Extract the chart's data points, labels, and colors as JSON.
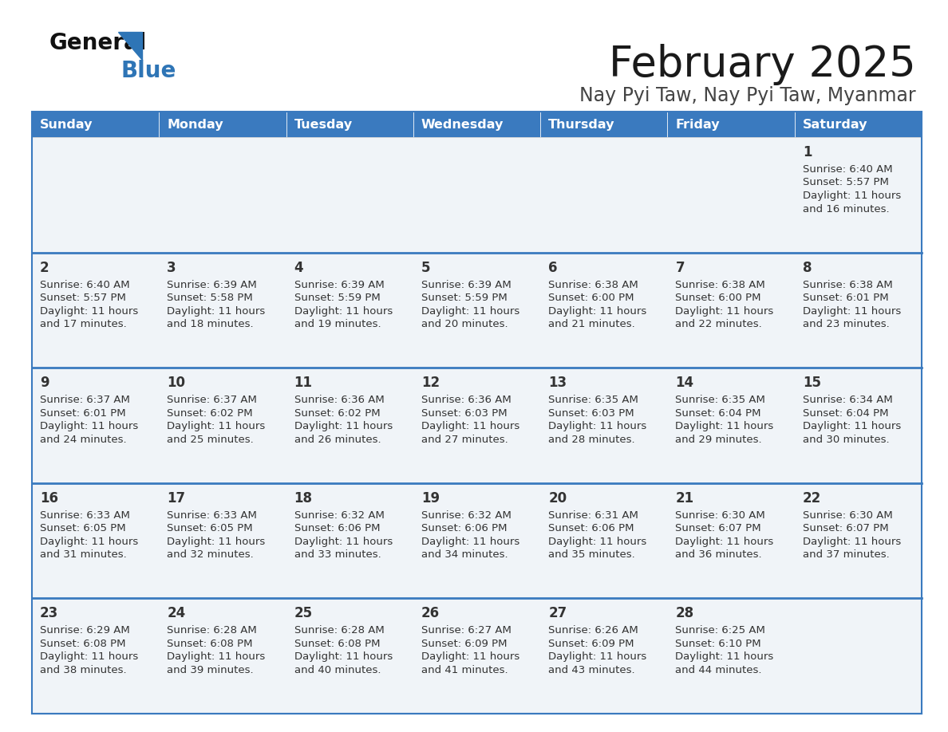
{
  "title": "February 2025",
  "subtitle": "Nay Pyi Taw, Nay Pyi Taw, Myanmar",
  "header_color": "#3a7abf",
  "header_text_color": "#ffffff",
  "days_of_week": [
    "Sunday",
    "Monday",
    "Tuesday",
    "Wednesday",
    "Thursday",
    "Friday",
    "Saturday"
  ],
  "background_color": "#ffffff",
  "cell_bg": "#f0f4f8",
  "row_line_color": "#3a7abf",
  "text_color": "#333333",
  "day_num_color": "#333333",
  "calendar_data": [
    [
      null,
      null,
      null,
      null,
      null,
      null,
      {
        "day": 1,
        "sunrise": "6:40 AM",
        "sunset": "5:57 PM",
        "daylight_l1": "Daylight: 11 hours",
        "daylight_l2": "and 16 minutes."
      }
    ],
    [
      {
        "day": 2,
        "sunrise": "6:40 AM",
        "sunset": "5:57 PM",
        "daylight_l1": "Daylight: 11 hours",
        "daylight_l2": "and 17 minutes."
      },
      {
        "day": 3,
        "sunrise": "6:39 AM",
        "sunset": "5:58 PM",
        "daylight_l1": "Daylight: 11 hours",
        "daylight_l2": "and 18 minutes."
      },
      {
        "day": 4,
        "sunrise": "6:39 AM",
        "sunset": "5:59 PM",
        "daylight_l1": "Daylight: 11 hours",
        "daylight_l2": "and 19 minutes."
      },
      {
        "day": 5,
        "sunrise": "6:39 AM",
        "sunset": "5:59 PM",
        "daylight_l1": "Daylight: 11 hours",
        "daylight_l2": "and 20 minutes."
      },
      {
        "day": 6,
        "sunrise": "6:38 AM",
        "sunset": "6:00 PM",
        "daylight_l1": "Daylight: 11 hours",
        "daylight_l2": "and 21 minutes."
      },
      {
        "day": 7,
        "sunrise": "6:38 AM",
        "sunset": "6:00 PM",
        "daylight_l1": "Daylight: 11 hours",
        "daylight_l2": "and 22 minutes."
      },
      {
        "day": 8,
        "sunrise": "6:38 AM",
        "sunset": "6:01 PM",
        "daylight_l1": "Daylight: 11 hours",
        "daylight_l2": "and 23 minutes."
      }
    ],
    [
      {
        "day": 9,
        "sunrise": "6:37 AM",
        "sunset": "6:01 PM",
        "daylight_l1": "Daylight: 11 hours",
        "daylight_l2": "and 24 minutes."
      },
      {
        "day": 10,
        "sunrise": "6:37 AM",
        "sunset": "6:02 PM",
        "daylight_l1": "Daylight: 11 hours",
        "daylight_l2": "and 25 minutes."
      },
      {
        "day": 11,
        "sunrise": "6:36 AM",
        "sunset": "6:02 PM",
        "daylight_l1": "Daylight: 11 hours",
        "daylight_l2": "and 26 minutes."
      },
      {
        "day": 12,
        "sunrise": "6:36 AM",
        "sunset": "6:03 PM",
        "daylight_l1": "Daylight: 11 hours",
        "daylight_l2": "and 27 minutes."
      },
      {
        "day": 13,
        "sunrise": "6:35 AM",
        "sunset": "6:03 PM",
        "daylight_l1": "Daylight: 11 hours",
        "daylight_l2": "and 28 minutes."
      },
      {
        "day": 14,
        "sunrise": "6:35 AM",
        "sunset": "6:04 PM",
        "daylight_l1": "Daylight: 11 hours",
        "daylight_l2": "and 29 minutes."
      },
      {
        "day": 15,
        "sunrise": "6:34 AM",
        "sunset": "6:04 PM",
        "daylight_l1": "Daylight: 11 hours",
        "daylight_l2": "and 30 minutes."
      }
    ],
    [
      {
        "day": 16,
        "sunrise": "6:33 AM",
        "sunset": "6:05 PM",
        "daylight_l1": "Daylight: 11 hours",
        "daylight_l2": "and 31 minutes."
      },
      {
        "day": 17,
        "sunrise": "6:33 AM",
        "sunset": "6:05 PM",
        "daylight_l1": "Daylight: 11 hours",
        "daylight_l2": "and 32 minutes."
      },
      {
        "day": 18,
        "sunrise": "6:32 AM",
        "sunset": "6:06 PM",
        "daylight_l1": "Daylight: 11 hours",
        "daylight_l2": "and 33 minutes."
      },
      {
        "day": 19,
        "sunrise": "6:32 AM",
        "sunset": "6:06 PM",
        "daylight_l1": "Daylight: 11 hours",
        "daylight_l2": "and 34 minutes."
      },
      {
        "day": 20,
        "sunrise": "6:31 AM",
        "sunset": "6:06 PM",
        "daylight_l1": "Daylight: 11 hours",
        "daylight_l2": "and 35 minutes."
      },
      {
        "day": 21,
        "sunrise": "6:30 AM",
        "sunset": "6:07 PM",
        "daylight_l1": "Daylight: 11 hours",
        "daylight_l2": "and 36 minutes."
      },
      {
        "day": 22,
        "sunrise": "6:30 AM",
        "sunset": "6:07 PM",
        "daylight_l1": "Daylight: 11 hours",
        "daylight_l2": "and 37 minutes."
      }
    ],
    [
      {
        "day": 23,
        "sunrise": "6:29 AM",
        "sunset": "6:08 PM",
        "daylight_l1": "Daylight: 11 hours",
        "daylight_l2": "and 38 minutes."
      },
      {
        "day": 24,
        "sunrise": "6:28 AM",
        "sunset": "6:08 PM",
        "daylight_l1": "Daylight: 11 hours",
        "daylight_l2": "and 39 minutes."
      },
      {
        "day": 25,
        "sunrise": "6:28 AM",
        "sunset": "6:08 PM",
        "daylight_l1": "Daylight: 11 hours",
        "daylight_l2": "and 40 minutes."
      },
      {
        "day": 26,
        "sunrise": "6:27 AM",
        "sunset": "6:09 PM",
        "daylight_l1": "Daylight: 11 hours",
        "daylight_l2": "and 41 minutes."
      },
      {
        "day": 27,
        "sunrise": "6:26 AM",
        "sunset": "6:09 PM",
        "daylight_l1": "Daylight: 11 hours",
        "daylight_l2": "and 43 minutes."
      },
      {
        "day": 28,
        "sunrise": "6:25 AM",
        "sunset": "6:10 PM",
        "daylight_l1": "Daylight: 11 hours",
        "daylight_l2": "and 44 minutes."
      },
      null
    ]
  ]
}
